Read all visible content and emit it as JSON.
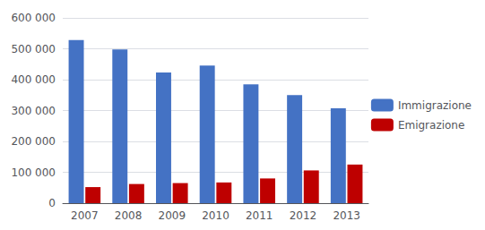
{
  "chart_data": {
    "type": "bar",
    "categories": [
      "2007",
      "2008",
      "2009",
      "2010",
      "2011",
      "2012",
      "2013"
    ],
    "series": [
      {
        "name": "Immigrazione",
        "color": "#4472C4",
        "values": [
          528000,
          498000,
          423000,
          446000,
          385000,
          350000,
          307000
        ]
      },
      {
        "name": "Emigrazione",
        "color": "#BE0000",
        "values": [
          52000,
          62000,
          65000,
          67000,
          80000,
          106000,
          125000
        ]
      }
    ],
    "ylim": [
      0,
      600000
    ],
    "yticks": [
      0,
      {
        "value": 100000,
        "label": "100 000"
      },
      {
        "value": 200000,
        "label": "200 000"
      },
      {
        "value": 300000,
        "label": "300 000"
      },
      {
        "value": 400000,
        "label": "400 000"
      },
      {
        "value": 500000,
        "label": "500 000"
      },
      {
        "value": 600000,
        "label": "600 000"
      }
    ],
    "grid": true,
    "legend": "right"
  }
}
